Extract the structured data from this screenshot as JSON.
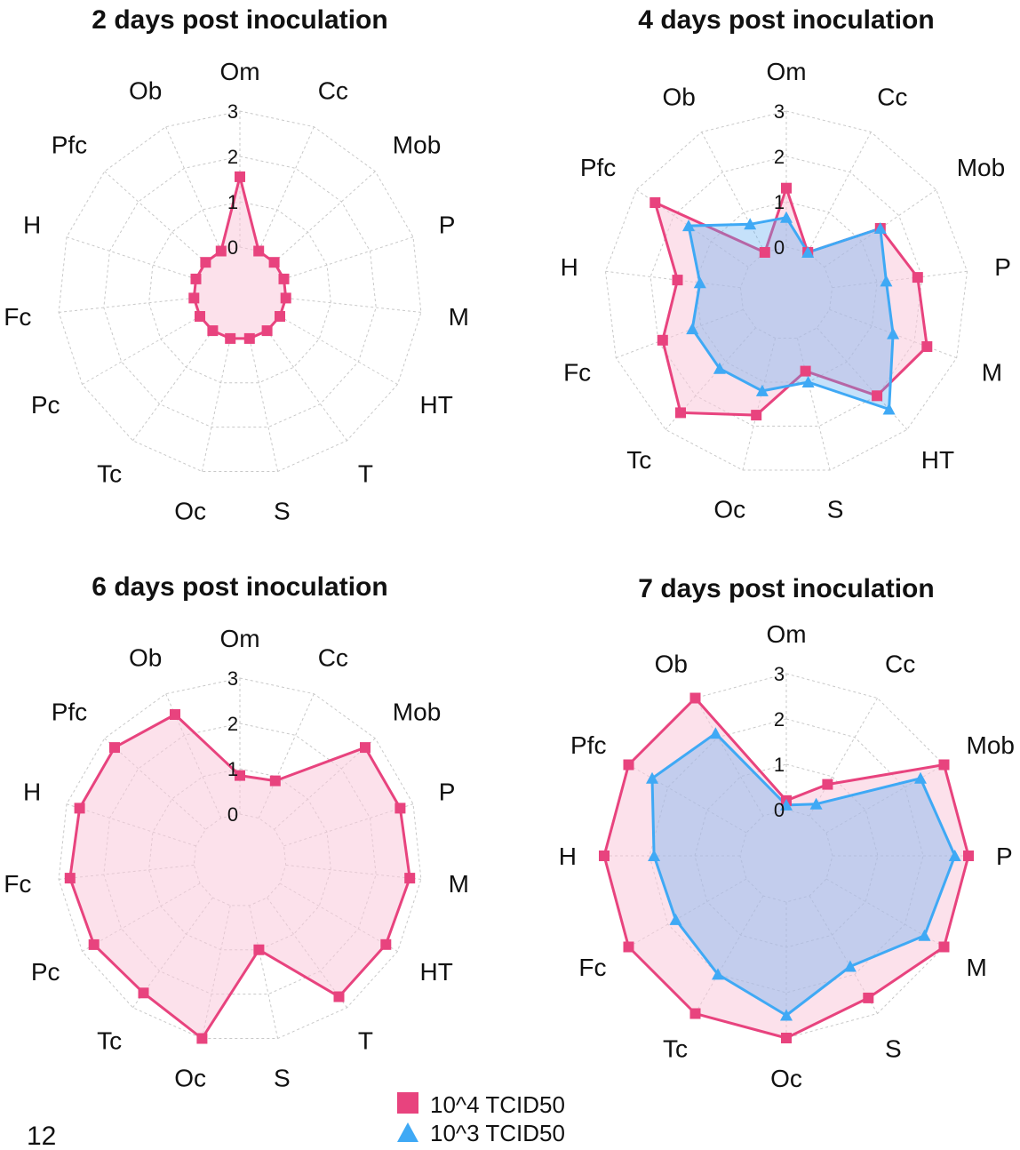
{
  "page_number": "12",
  "chart_data": [
    {
      "type": "radar",
      "title": "2 days post inoculation",
      "axes": [
        "Om",
        "Cc",
        "Mob",
        "P",
        "M",
        "HT",
        "T",
        "S",
        "Oc",
        "Tc",
        "Pc",
        "Fc",
        "H",
        "Pfc",
        "Ob"
      ],
      "rlim": [
        0,
        3
      ],
      "ticks": [
        "0",
        "1",
        "2",
        "3"
      ],
      "series": [
        {
          "name": "10^4 TCID50",
          "values": [
            1.55,
            0,
            0,
            0,
            0,
            0,
            0,
            0,
            0,
            0,
            0,
            0,
            0,
            0,
            0
          ]
        }
      ]
    },
    {
      "type": "radar",
      "title": "4 days post inoculation",
      "axes": [
        "Om",
        "Cc",
        "Mob",
        "P",
        "M",
        "HT",
        "S",
        "Oc",
        "Tc",
        "Fc",
        "H",
        "Pfc",
        "Ob"
      ],
      "rlim": [
        0,
        3
      ],
      "ticks": [
        "0",
        "1",
        "2",
        "3"
      ],
      "series": [
        {
          "name": "10^4 TCID50",
          "values": [
            1.3,
            0,
            1.5,
            1.9,
            2.3,
            2.0,
            0.75,
            1.75,
            2.5,
            1.9,
            1.4,
            2.5,
            0
          ]
        },
        {
          "name": "10^3 TCID50",
          "values": [
            0.65,
            0,
            1.5,
            1.2,
            1.5,
            2.4,
            1.0,
            1.2,
            1.2,
            1.2,
            0.9,
            1.6,
            0.7
          ]
        }
      ]
    },
    {
      "type": "radar",
      "title": "6 days post inoculation",
      "axes": [
        "Om",
        "Cc",
        "Mob",
        "P",
        "M",
        "HT",
        "T",
        "S",
        "Oc",
        "Tc",
        "Pc",
        "Fc",
        "H",
        "Pfc",
        "Ob"
      ],
      "rlim": [
        0,
        3
      ],
      "ticks": [
        "0",
        "1",
        "2",
        "3"
      ],
      "series": [
        {
          "name": "10^4 TCID50",
          "values": [
            0.85,
            0.9,
            2.7,
            2.7,
            2.75,
            2.7,
            2.7,
            1.0,
            3.0,
            2.6,
            2.7,
            2.75,
            2.7,
            2.7,
            2.5
          ]
        }
      ]
    },
    {
      "type": "radar",
      "title": "7 days post inoculation",
      "axes": [
        "Om",
        "Cc",
        "Mob",
        "P",
        "M",
        "S",
        "Oc",
        "Tc",
        "Fc",
        "H",
        "Pfc",
        "Ob"
      ],
      "rlim": [
        0,
        3
      ],
      "ticks": [
        "0",
        "1",
        "2",
        "3"
      ],
      "series": [
        {
          "name": "10^4 TCID50",
          "values": [
            0.2,
            0.8,
            3.0,
            3.0,
            3.0,
            2.6,
            3.0,
            3.0,
            3.0,
            3.0,
            3.0,
            3.0
          ]
        },
        {
          "name": "10^3 TCID50",
          "values": [
            0.1,
            0.3,
            2.4,
            2.7,
            2.5,
            1.8,
            2.5,
            2.0,
            1.8,
            1.9,
            2.4,
            2.1
          ]
        }
      ]
    }
  ],
  "legend": {
    "items": [
      {
        "label": "10^4 TCID50",
        "color": "#e8437e",
        "marker": "square"
      },
      {
        "label": "10^3 TCID50",
        "color": "#3fa9f5",
        "marker": "triangle"
      }
    ]
  },
  "colors": {
    "series1_line": "#e8437e",
    "series1_fill": "#f9c8da",
    "series2_line": "#3fa9f5",
    "series2_fill": "#5aa8f0"
  }
}
